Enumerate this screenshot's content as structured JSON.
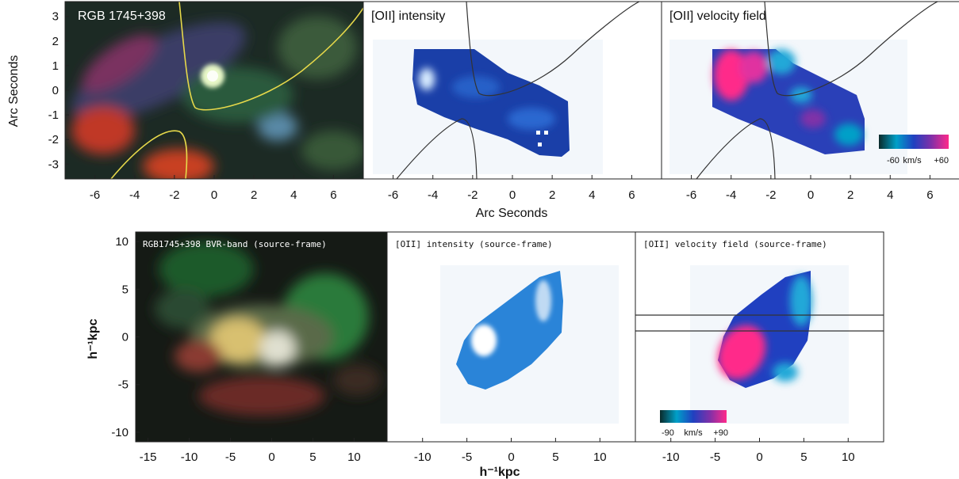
{
  "top_row": {
    "panels": [
      {
        "title": "RGB 1745+398"
      },
      {
        "title": "[OII]  intensity"
      },
      {
        "title": "[OII]  velocity  field"
      }
    ],
    "y_axis_label": "Arc Seconds",
    "x_axis_label": "Arc Seconds",
    "y_ticks": [
      "3",
      "2",
      "1",
      "0",
      "-1",
      "-2",
      "-3"
    ],
    "x_ticks": [
      "-6",
      "-4",
      "-2",
      "0",
      "2",
      "4",
      "6"
    ],
    "colorbar": {
      "min_label": "-60",
      "unit_label": "km/s",
      "max_label": "+60"
    }
  },
  "bottom_row": {
    "panels": [
      {
        "title": "RGB1745+398 BVR-band (source-frame)"
      },
      {
        "title": "[OII] intensity (source-frame)"
      },
      {
        "title": "[OII] velocity field (source-frame)"
      }
    ],
    "y_axis_label": "h⁻¹kpc",
    "x_axis_label": "h⁻¹kpc",
    "y_ticks": [
      "10",
      "5",
      "0",
      "-5",
      "-10"
    ],
    "x_ticks_first": [
      "-15",
      "-10",
      "-5",
      "0",
      "5",
      "10"
    ],
    "x_ticks_other": [
      "-10",
      "-5",
      "0",
      "5",
      "10"
    ],
    "colorbar": {
      "min_label": "-90",
      "unit_label": "km/s",
      "max_label": "+90"
    }
  },
  "colors": {
    "critical_curve_color": "#e6d84a",
    "velocity_colormap": [
      "#0a2a2a",
      "#00a0c8",
      "#2040c0",
      "#8030a8",
      "#ff2a8a"
    ]
  }
}
